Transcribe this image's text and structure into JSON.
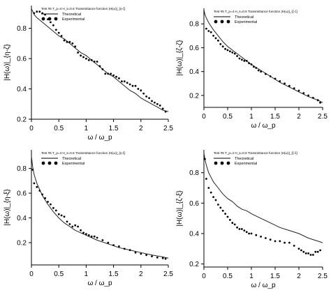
{
  "figure": {
    "panel_count": 4
  },
  "chart_data": [
    {
      "type": "scatter",
      "ylabel": "|H(ω)|_{η-ζ}",
      "xlabel": "ω / ω_p",
      "xlim": [
        0,
        2.5
      ],
      "ylim": [
        0.2,
        0.95
      ],
      "x_ticks": [
        "0",
        "0.5",
        "1",
        "1.5",
        "2",
        "2.5"
      ],
      "y_ticks": [
        "0.2",
        "0.4",
        "0.6",
        "0.8"
      ],
      "grid": false,
      "legend_position": "top-left",
      "legend": {
        "header": "Test #5  T_p=4  H_s=0.6  Transmittance function |H(ω)|_{η-ζ}",
        "theoretical_label": "Theoretical",
        "experimental_label": "Experimental"
      },
      "series": [
        {
          "name": "Theoretical",
          "style": "line",
          "x": [
            0.0,
            0.05,
            0.1,
            0.2,
            0.3,
            0.4,
            0.5,
            0.6,
            0.7,
            0.8,
            0.9,
            1.0,
            1.1,
            1.2,
            1.3,
            1.4,
            1.5,
            1.6,
            1.7,
            1.8,
            1.9,
            2.0,
            2.1,
            2.2,
            2.3,
            2.4,
            2.5
          ],
          "y": [
            0.93,
            0.89,
            0.87,
            0.84,
            0.81,
            0.78,
            0.75,
            0.73,
            0.7,
            0.67,
            0.64,
            0.62,
            0.59,
            0.56,
            0.53,
            0.5,
            0.48,
            0.45,
            0.42,
            0.39,
            0.37,
            0.34,
            0.32,
            0.3,
            0.28,
            0.26,
            0.25
          ]
        },
        {
          "name": "Experimental",
          "style": "dots",
          "x": [
            0.05,
            0.1,
            0.15,
            0.2,
            0.25,
            0.3,
            0.35,
            0.4,
            0.45,
            0.5,
            0.55,
            0.6,
            0.65,
            0.7,
            0.75,
            0.8,
            0.85,
            0.9,
            0.95,
            1.0,
            1.05,
            1.1,
            1.15,
            1.2,
            1.25,
            1.3,
            1.35,
            1.4,
            1.45,
            1.5,
            1.55,
            1.6,
            1.65,
            1.7,
            1.75,
            1.8,
            1.85,
            1.9,
            1.95,
            2.0,
            2.05,
            2.1,
            2.15,
            2.2,
            2.25,
            2.3,
            2.35,
            2.4,
            2.45
          ],
          "y": [
            0.9,
            0.91,
            0.91,
            0.9,
            0.89,
            0.86,
            0.84,
            0.82,
            0.79,
            0.77,
            0.75,
            0.72,
            0.71,
            0.71,
            0.7,
            0.68,
            0.64,
            0.62,
            0.61,
            0.6,
            0.59,
            0.59,
            0.58,
            0.58,
            0.55,
            0.53,
            0.5,
            0.5,
            0.5,
            0.49,
            0.48,
            0.47,
            0.45,
            0.45,
            0.44,
            0.43,
            0.42,
            0.42,
            0.4,
            0.39,
            0.37,
            0.35,
            0.34,
            0.32,
            0.31,
            0.3,
            0.29,
            0.27,
            0.25
          ]
        }
      ]
    },
    {
      "type": "scatter",
      "ylabel": "|H(ω)|_{ζ-ζ}",
      "xlabel": "ω / ω_p",
      "xlim": [
        0,
        2.5
      ],
      "ylim": [
        0.1,
        0.93
      ],
      "x_ticks": [
        "0",
        "0.5",
        "1",
        "1.5",
        "2",
        "2.5"
      ],
      "y_ticks": [
        "0.2",
        "0.4",
        "0.6",
        "0.8"
      ],
      "grid": false,
      "legend_position": "top-left",
      "legend": {
        "header": "Test #5  T_p=4  H_s=0.6  Transmittance function |H(ω)|_{ζ-ζ}",
        "theoretical_label": "Theoretical",
        "experimental_label": "Experimental"
      },
      "series": [
        {
          "name": "Theoretical",
          "style": "line",
          "x": [
            0.0,
            0.02,
            0.05,
            0.1,
            0.15,
            0.2,
            0.3,
            0.4,
            0.5,
            0.6,
            0.7,
            0.8,
            0.9,
            1.0,
            1.2,
            1.4,
            1.6,
            1.8,
            2.0,
            2.2,
            2.4,
            2.5
          ],
          "y": [
            0.92,
            0.88,
            0.85,
            0.81,
            0.78,
            0.75,
            0.7,
            0.65,
            0.61,
            0.58,
            0.55,
            0.52,
            0.49,
            0.46,
            0.41,
            0.36,
            0.31,
            0.27,
            0.23,
            0.19,
            0.16,
            0.14
          ]
        },
        {
          "name": "Experimental",
          "style": "dots",
          "x": [
            0.05,
            0.1,
            0.15,
            0.2,
            0.25,
            0.3,
            0.35,
            0.4,
            0.45,
            0.5,
            0.55,
            0.6,
            0.65,
            0.7,
            0.75,
            0.8,
            0.85,
            0.9,
            0.95,
            1.0,
            1.05,
            1.1,
            1.15,
            1.2,
            1.3,
            1.4,
            1.5,
            1.6,
            1.7,
            1.8,
            1.9,
            2.0,
            2.1,
            2.2,
            2.3,
            2.4,
            2.45
          ],
          "y": [
            0.76,
            0.74,
            0.73,
            0.7,
            0.68,
            0.66,
            0.63,
            0.61,
            0.59,
            0.58,
            0.57,
            0.56,
            0.55,
            0.53,
            0.51,
            0.5,
            0.49,
            0.49,
            0.47,
            0.46,
            0.44,
            0.43,
            0.41,
            0.4,
            0.38,
            0.36,
            0.34,
            0.32,
            0.3,
            0.28,
            0.26,
            0.24,
            0.22,
            0.2,
            0.18,
            0.16,
            0.14
          ]
        }
      ]
    },
    {
      "type": "scatter",
      "ylabel": "|H(ω)|_{η-ξ}",
      "xlabel": "ω / ω_p",
      "xlim": [
        0,
        2.5
      ],
      "ylim": [
        0.02,
        0.95
      ],
      "x_ticks": [
        "0",
        "0.5",
        "1",
        "1.5",
        "2",
        "2.5"
      ],
      "y_ticks": [
        "0.2",
        "0.4",
        "0.6",
        "0.8"
      ],
      "grid": false,
      "legend_position": "top-left",
      "legend": {
        "header": "Test #5  T_p=4  H_s=0.6  Transmittance function |H(ω)|_{η-ξ}",
        "theoretical_label": "Theoretical",
        "experimental_label": "Experimental"
      },
      "series": [
        {
          "name": "Theoretical",
          "style": "line",
          "x": [
            0.0,
            0.02,
            0.05,
            0.1,
            0.15,
            0.2,
            0.3,
            0.4,
            0.5,
            0.6,
            0.7,
            0.8,
            0.9,
            1.0,
            1.2,
            1.4,
            1.6,
            1.8,
            2.0,
            2.2,
            2.4,
            2.5
          ],
          "y": [
            0.9,
            0.82,
            0.75,
            0.68,
            0.63,
            0.58,
            0.51,
            0.45,
            0.4,
            0.36,
            0.33,
            0.3,
            0.28,
            0.26,
            0.22,
            0.19,
            0.16,
            0.14,
            0.12,
            0.1,
            0.085,
            0.075
          ]
        },
        {
          "name": "Experimental",
          "style": "dots",
          "x": [
            0.02,
            0.05,
            0.1,
            0.15,
            0.2,
            0.25,
            0.3,
            0.35,
            0.4,
            0.45,
            0.5,
            0.55,
            0.6,
            0.65,
            0.7,
            0.75,
            0.8,
            0.85,
            0.9,
            0.95,
            1.0,
            1.05,
            1.1,
            1.15,
            1.2,
            1.3,
            1.4,
            1.5,
            1.6,
            1.7,
            1.8,
            1.9,
            2.0,
            2.1,
            2.2,
            2.3,
            2.4,
            2.45
          ],
          "y": [
            0.79,
            0.68,
            0.65,
            0.62,
            0.59,
            0.56,
            0.53,
            0.51,
            0.48,
            0.46,
            0.43,
            0.42,
            0.41,
            0.37,
            0.35,
            0.33,
            0.34,
            0.33,
            0.3,
            0.28,
            0.27,
            0.26,
            0.25,
            0.25,
            0.24,
            0.22,
            0.2,
            0.18,
            0.17,
            0.15,
            0.14,
            0.12,
            0.11,
            0.1,
            0.09,
            0.08,
            0.075,
            0.07
          ]
        }
      ]
    },
    {
      "type": "scatter",
      "ylabel": "|H(ω)|_{ζ-ξ}",
      "xlabel": "ω / ω_p",
      "xlim": [
        0,
        2.5
      ],
      "ylim": [
        0.18,
        0.95
      ],
      "x_ticks": [
        "0",
        "0.5",
        "1",
        "1.5",
        "2",
        "2.5"
      ],
      "y_ticks": [
        "0.2",
        "0.4",
        "0.6",
        "0.8"
      ],
      "grid": false,
      "legend_position": "top-left",
      "legend": {
        "header": "Test #5  T_p=4  H_s=0.6  Transmittance function |H(ω)|_{ζ-ξ}",
        "theoretical_label": "Theoretical",
        "experimental_label": "Experimental"
      },
      "series": [
        {
          "name": "Theoretical",
          "style": "line",
          "x": [
            0.0,
            0.02,
            0.05,
            0.1,
            0.15,
            0.2,
            0.3,
            0.4,
            0.5,
            0.6,
            0.7,
            0.8,
            0.9,
            1.0,
            1.2,
            1.4,
            1.6,
            1.8,
            2.0,
            2.2,
            2.4,
            2.5
          ],
          "y": [
            0.93,
            0.89,
            0.85,
            0.8,
            0.77,
            0.74,
            0.7,
            0.66,
            0.63,
            0.61,
            0.58,
            0.56,
            0.55,
            0.53,
            0.5,
            0.47,
            0.44,
            0.42,
            0.4,
            0.37,
            0.35,
            0.34
          ]
        },
        {
          "name": "Experimental",
          "style": "dots",
          "x": [
            0.02,
            0.05,
            0.1,
            0.15,
            0.2,
            0.25,
            0.3,
            0.35,
            0.4,
            0.45,
            0.5,
            0.55,
            0.6,
            0.65,
            0.7,
            0.75,
            0.8,
            0.85,
            0.9,
            0.95,
            1.0,
            1.1,
            1.2,
            1.3,
            1.4,
            1.5,
            1.6,
            1.7,
            1.8,
            1.9,
            2.0,
            2.05,
            2.1,
            2.15,
            2.2,
            2.25,
            2.3,
            2.35,
            2.4,
            2.45
          ],
          "y": [
            0.89,
            0.76,
            0.7,
            0.67,
            0.64,
            0.62,
            0.59,
            0.57,
            0.55,
            0.53,
            0.51,
            0.49,
            0.47,
            0.46,
            0.44,
            0.43,
            0.43,
            0.42,
            0.41,
            0.4,
            0.4,
            0.39,
            0.38,
            0.37,
            0.36,
            0.35,
            0.35,
            0.34,
            0.34,
            0.32,
            0.3,
            0.29,
            0.28,
            0.27,
            0.27,
            0.26,
            0.26,
            0.28,
            0.28,
            0.29
          ]
        }
      ]
    }
  ]
}
